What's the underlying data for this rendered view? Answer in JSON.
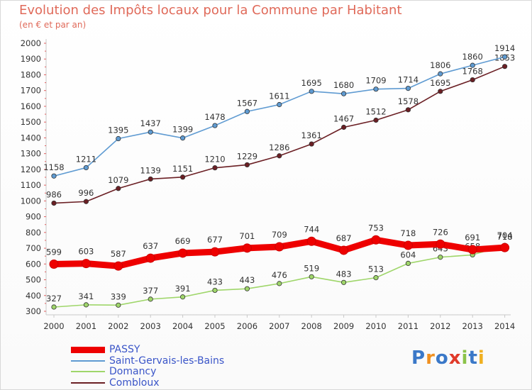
{
  "chart_data": {
    "type": "line",
    "title": "Evolution des Impôts locaux pour la Commune par Habitant",
    "subtitle": "(en € et par an)",
    "xlabel": "",
    "ylabel": "",
    "categories": [
      "2000",
      "2001",
      "2002",
      "2003",
      "2004",
      "2005",
      "2006",
      "2007",
      "2008",
      "2009",
      "2010",
      "2011",
      "2012",
      "2013",
      "2014"
    ],
    "ylim": [
      300,
      2000
    ],
    "yticks": [
      300,
      400,
      500,
      600,
      700,
      800,
      900,
      1000,
      1100,
      1200,
      1300,
      1400,
      1500,
      1600,
      1700,
      1800,
      1900,
      2000
    ],
    "grid": false,
    "legend_position": "bottom-left",
    "series": [
      {
        "name": "Saint-Gervais-les-Bains",
        "color": "#5f9bd2",
        "values": [
          1158,
          1211,
          1395,
          1437,
          1399,
          1478,
          1567,
          1611,
          1695,
          1680,
          1709,
          1714,
          1806,
          1860,
          1914
        ]
      },
      {
        "name": "Combloux",
        "color": "#6b1f24",
        "values": [
          986,
          996,
          1079,
          1139,
          1151,
          1210,
          1229,
          1286,
          1361,
          1467,
          1512,
          1578,
          1695,
          1768,
          1853
        ]
      },
      {
        "name": "Domancy",
        "color": "#9fd66a",
        "values": [
          327,
          341,
          339,
          377,
          391,
          433,
          443,
          476,
          519,
          483,
          513,
          604,
          643,
          658,
          718
        ]
      },
      {
        "name": "PASSY",
        "color": "#ee0000",
        "values": [
          599,
          603,
          587,
          637,
          669,
          677,
          701,
          709,
          744,
          687,
          753,
          718,
          726,
          691,
          704
        ]
      }
    ],
    "legend": [
      "PASSY",
      "Saint-Gervais-les-Bains",
      "Domancy",
      "Combloux"
    ]
  },
  "brand": {
    "logo_letters": [
      "P",
      "r",
      "o",
      "x",
      "i",
      "t",
      "i"
    ],
    "logo_colors": [
      "#3a78c8",
      "#f09020",
      "#3a78c8",
      "#e03a2a",
      "#8bc34a",
      "#3a78c8",
      "#f0b020"
    ]
  }
}
